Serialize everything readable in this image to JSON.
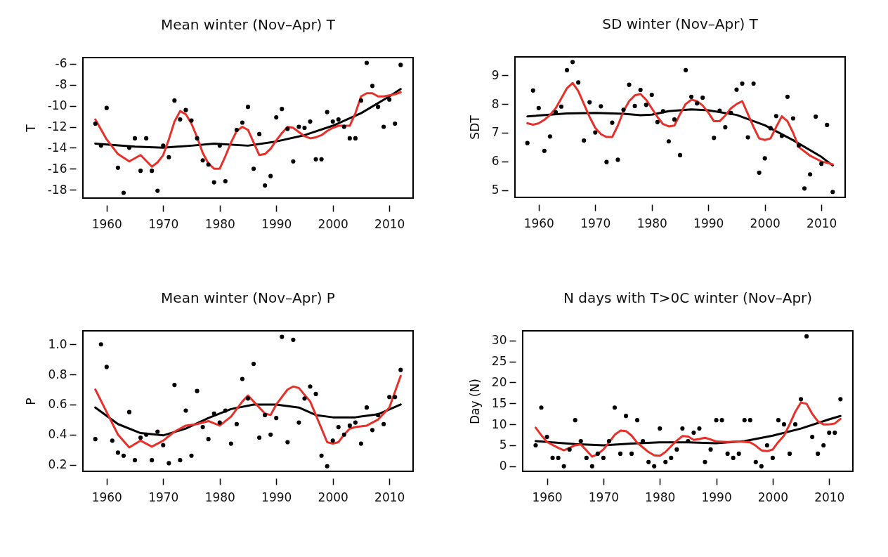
{
  "chart_data": [
    {
      "type": "scatter",
      "title": "Mean winter (Nov–Apr) T",
      "ylabel": "T",
      "grid": false,
      "xlim": [
        1955.8,
        2014.2
      ],
      "xticks": [
        1960,
        1970,
        1980,
        1990,
        2000,
        2010
      ],
      "ylim": [
        -18.8,
        -5.4
      ],
      "yticks": [
        -18,
        -16,
        -14,
        -12,
        -10,
        -8,
        -6
      ],
      "x": [
        1958,
        1959,
        1960,
        1961,
        1962,
        1963,
        1964,
        1965,
        1966,
        1967,
        1968,
        1969,
        1970,
        1971,
        1972,
        1973,
        1974,
        1975,
        1976,
        1977,
        1978,
        1979,
        1980,
        1981,
        1982,
        1983,
        1984,
        1985,
        1986,
        1987,
        1988,
        1989,
        1990,
        1991,
        1992,
        1993,
        1994,
        1995,
        1996,
        1997,
        1998,
        1999,
        2000,
        2001,
        2002,
        2003,
        2004,
        2005,
        2006,
        2007,
        2008,
        2009,
        2010,
        2011,
        2012
      ],
      "series": [
        {
          "type": "scatter",
          "marker": "circle",
          "color": "#000000",
          "values": [
            -11.7,
            -13.8,
            -10.2,
            null,
            -15.9,
            -18.3,
            -14.0,
            -13.1,
            -16.2,
            -13.1,
            -16.2,
            -18.1,
            -13.8,
            -14.9,
            -9.5,
            -11.3,
            -10.4,
            -11.4,
            -13.1,
            -15.2,
            -15.6,
            -17.3,
            -13.8,
            -17.2,
            null,
            -12.3,
            -11.6,
            -10.1,
            -16.0,
            -12.7,
            -17.6,
            -16.7,
            -11.1,
            -10.3,
            -12.2,
            -15.3,
            -12.0,
            -12.1,
            -11.5,
            -15.1,
            -15.1,
            -10.6,
            -11.5,
            -11.3,
            -12.0,
            -13.1,
            -13.1,
            -9.5,
            -5.9,
            -8.1,
            -10.1,
            -12.0,
            -9.4,
            -11.7,
            -6.1
          ]
        },
        {
          "type": "line",
          "color": "#000000",
          "x": [
            1958,
            1965,
            1970,
            1975,
            1979,
            1985,
            1990,
            1995,
            2000,
            2005,
            2010,
            2012
          ],
          "values": [
            -13.6,
            -13.9,
            -14.0,
            -13.8,
            -13.6,
            -13.8,
            -13.4,
            -12.8,
            -11.9,
            -10.7,
            -9.1,
            -8.4
          ]
        },
        {
          "type": "line",
          "color": "#e8302a",
          "x": [
            1958,
            1960,
            1962,
            1964,
            1966,
            1968,
            1969,
            1970,
            1971,
            1972,
            1973,
            1974,
            1975,
            1976,
            1977,
            1978,
            1979,
            1980,
            1981,
            1982,
            1983,
            1984,
            1985,
            1986,
            1987,
            1988,
            1989,
            1990,
            1991,
            1992,
            1993,
            1994,
            1995,
            1996,
            1997,
            1998,
            1999,
            2000,
            2001,
            2002,
            2003,
            2004,
            2005,
            2006,
            2007,
            2008,
            2009,
            2010,
            2011,
            2012
          ],
          "values": [
            -11.3,
            -13.2,
            -14.6,
            -15.3,
            -14.7,
            -15.8,
            -15.4,
            -14.7,
            -13.2,
            -11.5,
            -10.5,
            -10.8,
            -11.7,
            -13.0,
            -14.5,
            -15.5,
            -16.0,
            -16.0,
            -14.8,
            -13.5,
            -12.4,
            -12.0,
            -12.3,
            -13.5,
            -14.7,
            -14.6,
            -14.1,
            -13.3,
            -12.6,
            -12.0,
            -12.1,
            -12.5,
            -12.9,
            -13.1,
            -13.0,
            -12.8,
            -12.4,
            -12.1,
            -11.9,
            -11.9,
            -11.9,
            -10.7,
            -9.1,
            -8.8,
            -8.8,
            -9.1,
            -9.1,
            -9.0,
            -8.9,
            -8.7
          ]
        }
      ]
    },
    {
      "type": "scatter",
      "title": "SD winter (Nov–Apr) T",
      "ylabel": "SDT",
      "grid": false,
      "xlim": [
        1955.8,
        2014.2
      ],
      "xticks": [
        1960,
        1970,
        1980,
        1990,
        2000,
        2010
      ],
      "ylim": [
        4.75,
        9.64
      ],
      "yticks": [
        5,
        6,
        7,
        8,
        9
      ],
      "x": [
        1958,
        1959,
        1960,
        1961,
        1962,
        1963,
        1964,
        1965,
        1966,
        1967,
        1968,
        1969,
        1970,
        1971,
        1972,
        1973,
        1974,
        1975,
        1976,
        1977,
        1978,
        1979,
        1980,
        1981,
        1982,
        1983,
        1984,
        1985,
        1986,
        1987,
        1988,
        1989,
        1990,
        1991,
        1992,
        1993,
        1994,
        1995,
        1996,
        1997,
        1998,
        1999,
        2000,
        2001,
        2002,
        2003,
        2004,
        2005,
        2006,
        2007,
        2008,
        2009,
        2010,
        2011,
        2012
      ],
      "series": [
        {
          "type": "scatter",
          "marker": "circle",
          "color": "#000000",
          "values": [
            6.64,
            8.47,
            7.86,
            6.37,
            6.87,
            7.71,
            7.91,
            9.18,
            9.46,
            8.75,
            6.73,
            8.06,
            7.01,
            7.92,
            5.98,
            7.35,
            6.06,
            7.8,
            8.67,
            7.93,
            8.49,
            7.97,
            8.32,
            7.37,
            7.75,
            6.7,
            7.46,
            6.22,
            9.18,
            8.25,
            8.02,
            8.22,
            null,
            6.82,
            7.77,
            7.19,
            7.69,
            8.5,
            8.71,
            6.84,
            8.71,
            5.61,
            6.11,
            7.16,
            7.58,
            6.89,
            8.25,
            7.5,
            6.56,
            5.06,
            5.55,
            7.56,
            5.92,
            7.27,
            4.94
          ]
        },
        {
          "type": "line",
          "color": "#000000",
          "x": [
            1958,
            1965,
            1970,
            1975,
            1978,
            1980,
            1983,
            1987,
            1990,
            1995,
            2000,
            2005,
            2010,
            2012
          ],
          "values": [
            7.57,
            7.67,
            7.69,
            7.66,
            7.61,
            7.63,
            7.75,
            7.81,
            7.78,
            7.62,
            7.26,
            6.74,
            6.16,
            5.86
          ]
        },
        {
          "type": "line",
          "color": "#e8302a",
          "x": [
            1958,
            1959,
            1960,
            1961,
            1962,
            1963,
            1964,
            1965,
            1966,
            1967,
            1968,
            1969,
            1970,
            1971,
            1972,
            1973,
            1974,
            1975,
            1976,
            1977,
            1978,
            1979,
            1980,
            1981,
            1982,
            1983,
            1984,
            1985,
            1986,
            1987,
            1988,
            1989,
            1990,
            1991,
            1992,
            1993,
            1994,
            1995,
            1996,
            1997,
            1998,
            1999,
            2000,
            2001,
            2002,
            2003,
            2004,
            2005,
            2006,
            2007,
            2008,
            2009,
            2010,
            2011,
            2012
          ],
          "values": [
            7.33,
            7.28,
            7.33,
            7.45,
            7.62,
            7.85,
            8.2,
            8.55,
            8.73,
            8.45,
            8.0,
            7.55,
            7.17,
            6.95,
            6.85,
            6.85,
            7.25,
            7.75,
            8.1,
            8.3,
            8.35,
            8.15,
            7.85,
            7.55,
            7.3,
            7.22,
            7.25,
            7.65,
            8.0,
            8.15,
            8.1,
            7.95,
            7.7,
            7.4,
            7.4,
            7.6,
            7.85,
            8.0,
            8.1,
            7.65,
            7.2,
            6.8,
            6.75,
            6.8,
            7.2,
            7.57,
            7.4,
            7.0,
            6.5,
            6.35,
            6.2,
            6.1,
            6.0,
            5.95,
            5.9
          ]
        }
      ]
    },
    {
      "type": "scatter",
      "title": "Mean winter (Nov–Apr) P",
      "ylabel": "P",
      "grid": false,
      "xlim": [
        1955.8,
        2014.2
      ],
      "xticks": [
        1960,
        1970,
        1980,
        1990,
        2000,
        2010
      ],
      "ylim": [
        0.156,
        1.09
      ],
      "yticks": [
        {
          "value": 0.2,
          "label": "0.2"
        },
        {
          "value": 0.4,
          "label": "0.4"
        },
        {
          "value": 0.6,
          "label": "0.6"
        },
        {
          "value": 0.8,
          "label": "0.8"
        },
        {
          "value": 1.0,
          "label": "1.0"
        }
      ],
      "x": [
        1958,
        1959,
        1960,
        1961,
        1962,
        1963,
        1964,
        1965,
        1966,
        1967,
        1968,
        1969,
        1970,
        1971,
        1972,
        1973,
        1974,
        1975,
        1976,
        1977,
        1978,
        1979,
        1980,
        1981,
        1982,
        1983,
        1984,
        1985,
        1986,
        1987,
        1988,
        1989,
        1990,
        1991,
        1992,
        1993,
        1994,
        1995,
        1996,
        1997,
        1998,
        1999,
        2000,
        2001,
        2002,
        2003,
        2004,
        2005,
        2006,
        2007,
        2008,
        2009,
        2010,
        2011,
        2012
      ],
      "series": [
        {
          "type": "scatter",
          "marker": "circle",
          "color": "#000000",
          "values": [
            0.37,
            1.0,
            0.85,
            0.36,
            0.28,
            0.26,
            0.55,
            0.23,
            0.38,
            0.4,
            0.23,
            0.42,
            0.33,
            0.21,
            0.73,
            0.23,
            0.56,
            0.26,
            0.69,
            0.45,
            0.37,
            0.54,
            0.48,
            0.56,
            0.34,
            0.47,
            0.77,
            0.64,
            0.87,
            0.38,
            0.53,
            0.4,
            0.51,
            1.05,
            0.35,
            1.03,
            0.48,
            0.64,
            0.72,
            0.67,
            0.26,
            0.19,
            0.36,
            0.45,
            0.4,
            0.46,
            0.48,
            0.34,
            0.58,
            0.43,
            0.53,
            0.47,
            0.65,
            0.65,
            0.83
          ]
        },
        {
          "type": "line",
          "color": "#000000",
          "x": [
            1958,
            1962,
            1966,
            1970,
            1974,
            1978,
            1982,
            1986,
            1990,
            1994,
            1997,
            2000,
            2004,
            2008,
            2012
          ],
          "values": [
            0.58,
            0.47,
            0.41,
            0.395,
            0.44,
            0.51,
            0.57,
            0.6,
            0.6,
            0.58,
            0.53,
            0.515,
            0.515,
            0.535,
            0.6
          ]
        },
        {
          "type": "line",
          "color": "#e8302a",
          "x": [
            1958,
            1960,
            1962,
            1964,
            1966,
            1968,
            1970,
            1972,
            1974,
            1976,
            1978,
            1980,
            1982,
            1984,
            1985,
            1986,
            1988,
            1989,
            1990,
            1992,
            1993,
            1994,
            1996,
            1998,
            1999,
            2000,
            2001,
            2002,
            2003,
            2004,
            2006,
            2008,
            2010,
            2012
          ],
          "values": [
            0.7,
            0.55,
            0.4,
            0.315,
            0.36,
            0.32,
            0.36,
            0.42,
            0.46,
            0.47,
            0.49,
            0.46,
            0.52,
            0.62,
            0.66,
            0.62,
            0.54,
            0.53,
            0.6,
            0.7,
            0.72,
            0.71,
            0.62,
            0.44,
            0.35,
            0.34,
            0.35,
            0.4,
            0.44,
            0.45,
            0.46,
            0.5,
            0.58,
            0.79
          ]
        }
      ]
    },
    {
      "type": "scatter",
      "title": "N days with T>0C winter (Nov–Apr)",
      "ylabel": "Day (N)",
      "grid": false,
      "xlim": [
        1955.7,
        2014.2
      ],
      "xticks": [
        1960,
        1970,
        1980,
        1990,
        2000,
        2010
      ],
      "ylim": [
        -1.2,
        32.3
      ],
      "yticks": [
        0,
        5,
        10,
        15,
        20,
        25,
        30
      ],
      "x": [
        1958,
        1959,
        1960,
        1961,
        1962,
        1963,
        1964,
        1965,
        1966,
        1967,
        1968,
        1969,
        1970,
        1971,
        1972,
        1973,
        1974,
        1975,
        1976,
        1977,
        1978,
        1979,
        1980,
        1981,
        1982,
        1983,
        1984,
        1985,
        1986,
        1987,
        1988,
        1989,
        1990,
        1991,
        1992,
        1993,
        1994,
        1995,
        1996,
        1997,
        1998,
        1999,
        2000,
        2001,
        2002,
        2003,
        2004,
        2005,
        2006,
        2007,
        2008,
        2009,
        2010,
        2011,
        2012
      ],
      "series": [
        {
          "type": "scatter",
          "marker": "circle",
          "color": "#000000",
          "values": [
            5,
            14,
            7,
            2,
            2,
            0,
            4,
            11,
            6,
            2,
            0,
            3,
            2,
            6,
            14,
            3,
            12,
            3,
            11,
            6,
            1,
            0,
            9,
            1,
            2,
            4,
            9,
            6,
            8,
            9,
            1,
            4,
            11,
            11,
            3,
            2,
            3,
            11,
            11,
            1,
            0,
            5,
            2,
            11,
            10,
            3,
            10,
            16,
            31,
            7,
            3,
            5,
            8,
            8,
            16
          ]
        },
        {
          "type": "line",
          "color": "#000000",
          "x": [
            1958,
            1965,
            1970,
            1975,
            1980,
            1985,
            1990,
            1995,
            2000,
            2005,
            2010,
            2012
          ],
          "values": [
            6,
            5.3,
            5.0,
            5.4,
            5.7,
            5.7,
            5.5,
            6.0,
            7.3,
            9.0,
            11.2,
            12
          ]
        },
        {
          "type": "line",
          "color": "#e8302a",
          "x": [
            1958,
            1959,
            1960,
            1962,
            1963,
            1964,
            1965,
            1966,
            1967,
            1968,
            1969,
            1970,
            1971,
            1972,
            1973,
            1974,
            1975,
            1976,
            1977,
            1978,
            1979,
            1980,
            1981,
            1982,
            1983,
            1984,
            1985,
            1986,
            1987,
            1988,
            1989,
            1990,
            1992,
            1994,
            1996,
            1997,
            1998,
            1999,
            2000,
            2001,
            2002,
            2003,
            2004,
            2005,
            2006,
            2007,
            2008,
            2009,
            2010,
            2011,
            2012
          ],
          "values": [
            9.2,
            7.4,
            5.8,
            4.4,
            3.8,
            4.4,
            5.0,
            5.2,
            3.8,
            2.3,
            2.9,
            4.0,
            5.7,
            7.5,
            8.5,
            8.4,
            7.3,
            5.6,
            4.5,
            3.4,
            2.6,
            2.5,
            3.4,
            4.8,
            6.1,
            7.2,
            7.1,
            6.3,
            6.5,
            6.8,
            6.4,
            5.9,
            5.8,
            5.9,
            5.7,
            4.9,
            3.8,
            3.6,
            4.0,
            5.8,
            7.3,
            10.0,
            13.0,
            15.2,
            14.9,
            12.5,
            10.7,
            10.0,
            10.0,
            10.2,
            11.3
          ]
        }
      ]
    }
  ]
}
